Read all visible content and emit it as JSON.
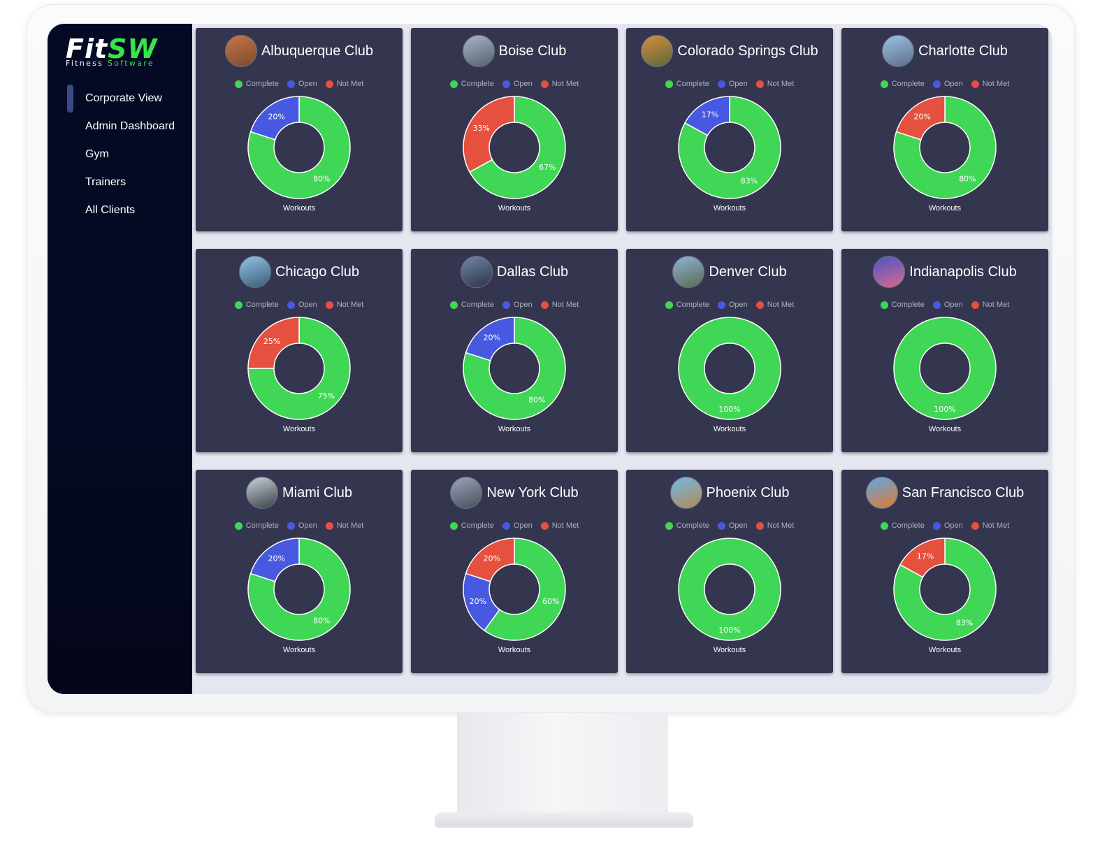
{
  "brand": {
    "logo_fit": "Fit",
    "logo_sw": "SW",
    "logo_sub_1": "Fitness",
    "logo_sub_2": "Software"
  },
  "sidebar": {
    "items": [
      {
        "label": "Corporate View",
        "active": true
      },
      {
        "label": "Admin Dashboard",
        "active": false
      },
      {
        "label": "Gym",
        "active": false
      },
      {
        "label": "Trainers",
        "active": false
      },
      {
        "label": "All Clients",
        "active": false
      }
    ]
  },
  "legend": {
    "complete": "Complete",
    "open": "Open",
    "not_met": "Not Met"
  },
  "colors": {
    "complete": "#3fd755",
    "open": "#4759e0",
    "not_met": "#e5503f",
    "card_bg": "#343650"
  },
  "chart_data": [
    {
      "type": "pie",
      "title": "Albuquerque Club",
      "xlabel": "Workouts",
      "labels": [
        "Complete",
        "Open",
        "Not Met"
      ],
      "values": [
        80,
        20,
        0
      ],
      "value_labels": [
        "80%",
        "20%",
        ""
      ],
      "photo": [
        "#c8754a",
        "#7d4a2c"
      ]
    },
    {
      "type": "pie",
      "title": "Boise Club",
      "xlabel": "Workouts",
      "labels": [
        "Complete",
        "Open",
        "Not Met"
      ],
      "values": [
        67,
        0,
        33
      ],
      "value_labels": [
        "67%",
        "",
        "33%"
      ],
      "photo": [
        "#a9b4c6",
        "#55606e"
      ]
    },
    {
      "type": "pie",
      "title": "Colorado Springs Club",
      "xlabel": "Workouts",
      "labels": [
        "Complete",
        "Open",
        "Not Met"
      ],
      "values": [
        83,
        17,
        0
      ],
      "value_labels": [
        "83%",
        "17%",
        ""
      ],
      "photo": [
        "#d58c3e",
        "#5a6a3a"
      ]
    },
    {
      "type": "pie",
      "title": "Charlotte Club",
      "xlabel": "Workouts",
      "labels": [
        "Complete",
        "Open",
        "Not Met"
      ],
      "values": [
        80,
        0,
        20
      ],
      "value_labels": [
        "80%",
        "",
        "20%"
      ],
      "photo": [
        "#9cc3e6",
        "#5b6f86"
      ]
    },
    {
      "type": "pie",
      "title": "Chicago Club",
      "xlabel": "Workouts",
      "labels": [
        "Complete",
        "Open",
        "Not Met"
      ],
      "values": [
        75,
        0,
        25
      ],
      "value_labels": [
        "75%",
        "",
        "25%"
      ],
      "photo": [
        "#8fc6e8",
        "#3d5a72"
      ]
    },
    {
      "type": "pie",
      "title": "Dallas Club",
      "xlabel": "Workouts",
      "labels": [
        "Complete",
        "Open",
        "Not Met"
      ],
      "values": [
        80,
        20,
        0
      ],
      "value_labels": [
        "80%",
        "20%",
        ""
      ],
      "photo": [
        "#6d86a8",
        "#2d3446"
      ]
    },
    {
      "type": "pie",
      "title": "Denver Club",
      "xlabel": "Workouts",
      "labels": [
        "Complete",
        "Open",
        "Not Met"
      ],
      "values": [
        100,
        0,
        0
      ],
      "value_labels": [
        "100%",
        "",
        ""
      ],
      "photo": [
        "#8db4d6",
        "#5c6a4e"
      ]
    },
    {
      "type": "pie",
      "title": "Indianapolis Club",
      "xlabel": "Workouts",
      "labels": [
        "Complete",
        "Open",
        "Not Met"
      ],
      "values": [
        100,
        0,
        0
      ],
      "value_labels": [
        "100%",
        "",
        ""
      ],
      "photo": [
        "#4a55c8",
        "#d96a8a"
      ]
    },
    {
      "type": "pie",
      "title": "Miami Club",
      "xlabel": "Workouts",
      "labels": [
        "Complete",
        "Open",
        "Not Met"
      ],
      "values": [
        80,
        20,
        0
      ],
      "value_labels": [
        "80%",
        "20%",
        ""
      ],
      "photo": [
        "#c9d3dc",
        "#3a3f46"
      ]
    },
    {
      "type": "pie",
      "title": "New York Club",
      "xlabel": "Workouts",
      "labels": [
        "Complete",
        "Open",
        "Not Met"
      ],
      "values": [
        60,
        20,
        20
      ],
      "value_labels": [
        "60%",
        "20%",
        "20%"
      ],
      "photo": [
        "#9aa6b8",
        "#484e5c"
      ]
    },
    {
      "type": "pie",
      "title": "Phoenix Club",
      "xlabel": "Workouts",
      "labels": [
        "Complete",
        "Open",
        "Not Met"
      ],
      "values": [
        100,
        0,
        0
      ],
      "value_labels": [
        "100%",
        "",
        ""
      ],
      "photo": [
        "#74b8e4",
        "#b08a54"
      ]
    },
    {
      "type": "pie",
      "title": "San Francisco Club",
      "xlabel": "Workouts",
      "labels": [
        "Complete",
        "Open",
        "Not Met"
      ],
      "values": [
        83,
        0,
        17
      ],
      "value_labels": [
        "83%",
        "",
        "17%"
      ],
      "photo": [
        "#5fa8e6",
        "#e07a2f"
      ]
    }
  ]
}
